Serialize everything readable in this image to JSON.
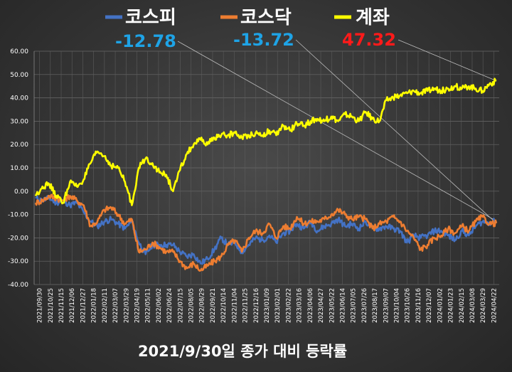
{
  "chart_data": {
    "type": "line",
    "caption": "2021/9/30일 종가 대비 등락률",
    "ylim": [
      -40,
      60
    ],
    "yticks": [
      "60.00",
      "50.00",
      "40.00",
      "30.00",
      "20.00",
      "10.00",
      "0.00",
      "-10.00",
      "-20.00",
      "-30.00",
      "-40.00"
    ],
    "grid": true,
    "legend_position": "top",
    "xticks": [
      "2021/09/30",
      "2021/10/25",
      "2021/11/15",
      "2021/12/06",
      "2021/12/27",
      "2022/01/18",
      "2022/02/11",
      "2022/03/07",
      "2022/03/29",
      "2022/04/19",
      "2022/05/11",
      "2022/06/02",
      "2022/06/24",
      "2022/07/15",
      "2022/08/05",
      "2022/08/29",
      "2022/09/21",
      "2022/10/14",
      "2022/11/04",
      "2022/11/25",
      "2022/12/16",
      "2023/01/09",
      "2023/02/01",
      "2023/02/22",
      "2023/03/16",
      "2023/04/06",
      "2023/04/27",
      "2023/05/22",
      "2023/06/14",
      "2023/07/05",
      "2023/07/26",
      "2023/08/17",
      "2023/09/07",
      "2023/10/04",
      "2023/10/26",
      "2023/11/16",
      "2023/12/07",
      "2024/01/02",
      "2024/01/23",
      "2024/02/15",
      "2024/03/08",
      "2024/03/29",
      "2024/04/22"
    ],
    "series": [
      {
        "name": "코스피",
        "color": "#4472c4",
        "final_label": "-12.78",
        "label_color": "#1ea3e6",
        "values": [
          -3,
          -4,
          -3,
          -5,
          -4,
          -6,
          -5,
          -9,
          -13,
          -15,
          -13,
          -12,
          -14,
          -16,
          -13,
          -22,
          -27,
          -23,
          -23,
          -23,
          -23,
          -26,
          -28,
          -27,
          -31,
          -29,
          -25,
          -20,
          -23,
          -22,
          -26,
          -23,
          -20,
          -21,
          -19,
          -22,
          -18,
          -17,
          -14,
          -16,
          -13,
          -17,
          -15,
          -14,
          -12,
          -15,
          -14,
          -16,
          -13,
          -16,
          -16,
          -15,
          -16,
          -17,
          -22,
          -19,
          -20,
          -19,
          -17,
          -17,
          -19,
          -21,
          -17,
          -19,
          -15,
          -13,
          -13.5,
          -12.78
        ]
      },
      {
        "name": "코스닥",
        "color": "#ed7d31",
        "final_label": "-13.72",
        "label_color": "#1ea3e6",
        "values": [
          -5,
          -4,
          -2,
          -3,
          -4,
          -2,
          -4,
          -6,
          -15,
          -13,
          -8,
          -7,
          -10,
          -14,
          -12,
          -26,
          -25,
          -22,
          -24,
          -26,
          -26,
          -30,
          -33,
          -31,
          -34,
          -32,
          -30,
          -28,
          -23,
          -21,
          -26,
          -20,
          -17,
          -18,
          -14,
          -20,
          -15,
          -16,
          -11,
          -14,
          -13,
          -13,
          -12,
          -10,
          -8,
          -10,
          -12,
          -11,
          -12,
          -16,
          -14,
          -13,
          -11,
          -13,
          -17,
          -20,
          -25,
          -23,
          -20,
          -19,
          -16,
          -18,
          -15,
          -17,
          -13,
          -11,
          -14,
          -13.72
        ]
      },
      {
        "name": "계좌",
        "color": "#ffff00",
        "final_label": "47.32",
        "label_color": "#ff1a1a",
        "values": [
          -2,
          2,
          3,
          -2,
          -5,
          4,
          2,
          5,
          12,
          17,
          15,
          11,
          10,
          4,
          -6,
          10,
          14,
          12,
          8,
          7,
          0,
          9,
          16,
          20,
          22,
          20,
          23,
          24,
          24,
          25,
          23,
          24,
          25,
          24,
          26,
          24,
          28,
          26,
          29,
          28,
          30,
          31,
          30,
          32,
          30,
          33,
          32,
          30,
          34,
          31,
          30,
          39,
          40,
          41,
          42,
          43,
          42,
          43,
          44,
          43,
          44,
          45,
          44,
          45,
          44,
          43,
          46,
          47.32
        ]
      }
    ]
  }
}
